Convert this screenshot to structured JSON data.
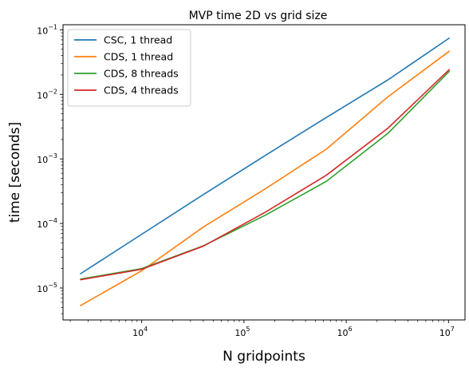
{
  "chart_data": {
    "type": "line",
    "title": "MVP time 2D vs grid size",
    "xlabel": "N gridpoints",
    "ylabel": "time [seconds]",
    "xscale": "log",
    "yscale": "log",
    "xlim": [
      1700,
      14500000
    ],
    "ylim": [
      3.2e-06,
      0.12
    ],
    "xticks": [
      {
        "value": 10000,
        "base": "10",
        "exp": "4"
      },
      {
        "value": 100000,
        "base": "10",
        "exp": "5"
      },
      {
        "value": 1000000,
        "base": "10",
        "exp": "6"
      },
      {
        "value": 10000000,
        "base": "10",
        "exp": "7"
      }
    ],
    "yticks": [
      {
        "value": 1e-05,
        "base": "10",
        "exp": "−5"
      },
      {
        "value": 0.0001,
        "base": "10",
        "exp": "−4"
      },
      {
        "value": 0.001,
        "base": "10",
        "exp": "−3"
      },
      {
        "value": 0.01,
        "base": "10",
        "exp": "−2"
      },
      {
        "value": 0.1,
        "base": "10",
        "exp": "−1"
      }
    ],
    "grid": false,
    "legend_position": "top-left",
    "series": [
      {
        "name": "CSC, 1 thread",
        "color": "#1f77b4",
        "x": [
          2500,
          10000,
          40000,
          160000,
          640000,
          2560000,
          10240000
        ],
        "y": [
          1.65e-05,
          6.8e-05,
          0.00028,
          0.00112,
          0.0044,
          0.0168,
          0.075
        ]
      },
      {
        "name": "CDS, 1 thread",
        "color": "#ff7f0e",
        "x": [
          2500,
          10000,
          40000,
          160000,
          640000,
          2560000,
          10240000
        ],
        "y": [
          5.3e-06,
          1.85e-05,
          8.8e-05,
          0.00034,
          0.00142,
          0.0092,
          0.047
        ]
      },
      {
        "name": "CDS, 8 threads",
        "color": "#2ca02c",
        "x": [
          2500,
          10000,
          40000,
          160000,
          640000,
          2560000,
          10240000
        ],
        "y": [
          1.37e-05,
          2e-05,
          4.5e-05,
          0.000133,
          0.00045,
          0.0025,
          0.023
        ]
      },
      {
        "name": "CDS, 4 threads",
        "color": "#d62728",
        "x": [
          2500,
          10000,
          40000,
          160000,
          640000,
          2560000,
          10240000
        ],
        "y": [
          1.34e-05,
          1.95e-05,
          4.45e-05,
          0.000148,
          0.00056,
          0.003,
          0.0245
        ]
      }
    ]
  }
}
